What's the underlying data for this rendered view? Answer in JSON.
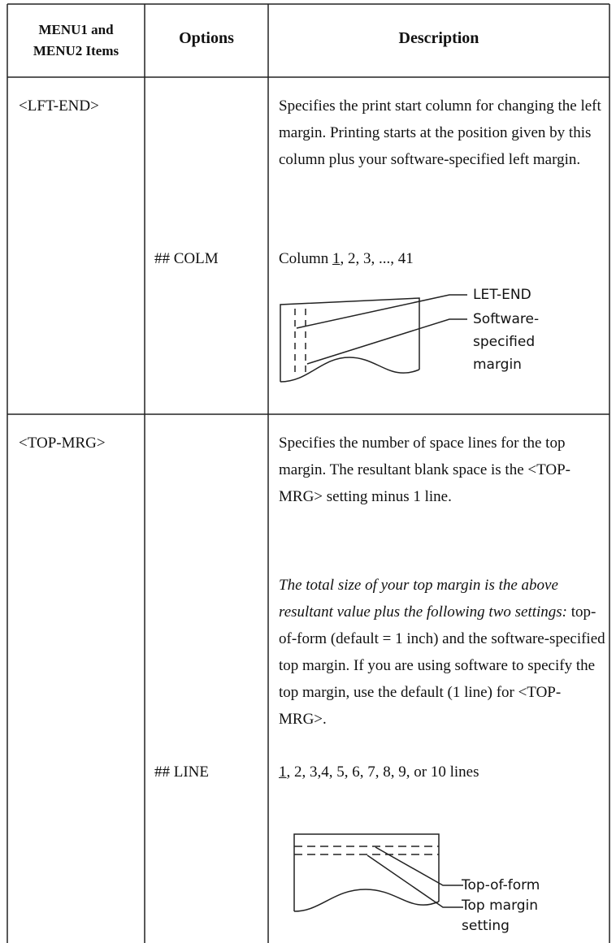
{
  "table": {
    "headers": [
      [
        "MENU1 and",
        "MENU2 Items"
      ],
      "Options",
      "Description"
    ],
    "rows": [
      {
        "item": "<LFT-END>",
        "description": "Specifies the print start column for changing the left margin.  Printing starts at the position given by this column plus your software-specified left margin.",
        "option": "## COLM",
        "values": {
          "default": "1",
          "prefix": "Column ",
          "rest": ", 2, 3, ..., 41"
        },
        "figure": {
          "labels": [
            [
              "LET-END"
            ],
            [
              "Software-",
              "specified",
              "margin"
            ]
          ]
        }
      },
      {
        "item": "<TOP-MRG>",
        "description": "Specifies the number of space lines for the top margin.  The resultant blank space is the <TOP-MRG> setting minus 1 line.",
        "note": {
          "italic": "The total size of your top margin is the above resultant value plus the following two settings:",
          "plain": "  top-of-form (default = 1 inch) and the software-specified top margin.  If you are using software to specify the top margin, use the default (1 line) for <TOP-MRG>."
        },
        "option": "## LINE",
        "values": {
          "default": "1",
          "prefix": "",
          "rest": ", 2, 3,4, 5, 6, 7, 8, 9, or 10 lines"
        },
        "figure": {
          "labels": [
            [
              "Top-of-form"
            ],
            [
              "Top margin",
              "setting"
            ]
          ]
        }
      }
    ]
  }
}
